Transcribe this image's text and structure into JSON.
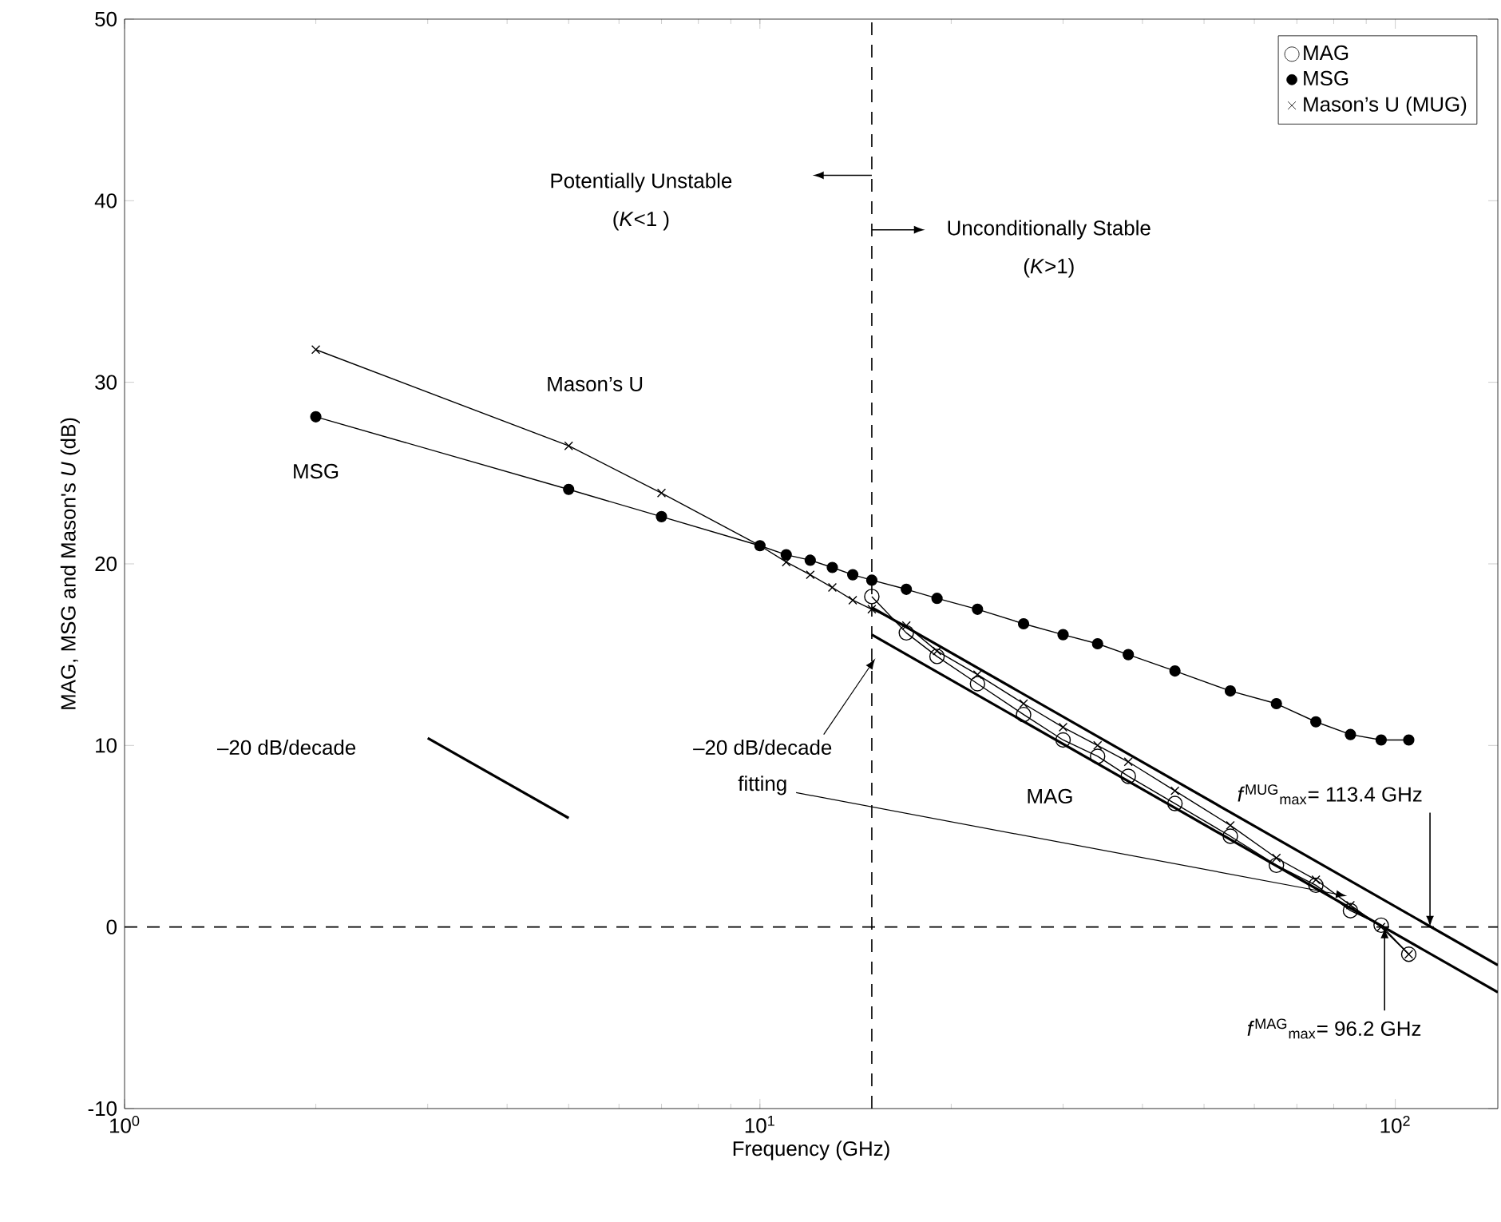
{
  "chart_data": {
    "type": "line",
    "xlabel": "Frequency (GHz)",
    "ylabel": "MAG, MSG and Mason's *U* (dB)",
    "log": "x",
    "grid": false,
    "legend": "top right",
    "xlim": [
      1,
      145
    ],
    "ylim": [
      -10,
      50
    ],
    "xticks": [
      {
        "value": 1,
        "label": "10$^{0}$"
      },
      {
        "value": 10,
        "label": "10$^{1}$"
      },
      {
        "value": 100,
        "label": "10$^{2}$"
      }
    ],
    "yticks": [
      -10,
      0,
      10,
      20,
      30,
      40,
      50
    ],
    "series": [
      {
        "name": "MAG",
        "color": "#000000",
        "marker": "circle",
        "x": [
          15,
          17,
          19,
          22,
          26,
          30,
          34,
          38,
          45,
          55,
          65,
          75,
          85,
          95,
          105
        ],
        "values": [
          18.2,
          16.2,
          14.9,
          13.4,
          11.7,
          10.3,
          9.4,
          8.3,
          6.8,
          5.0,
          3.4,
          2.3,
          0.9,
          0.1,
          -1.5
        ]
      },
      {
        "name": "MSG",
        "color": "#000000",
        "marker": "circle",
        "x": [
          2,
          5,
          7,
          10,
          11,
          12,
          13,
          14,
          15,
          17,
          19,
          22,
          26,
          30,
          34,
          38,
          45,
          55,
          65,
          75,
          85,
          95,
          105
        ],
        "values": [
          28.1,
          24.1,
          22.6,
          21.0,
          20.5,
          20.2,
          19.8,
          19.4,
          19.1,
          18.6,
          18.1,
          17.5,
          16.7,
          16.1,
          15.6,
          15.0,
          14.1,
          13.0,
          12.3,
          11.3,
          10.6,
          10.3,
          10.3
        ]
      },
      {
        "name": "Mason’s U (MUG)",
        "color": "#000000",
        "marker": "cross",
        "x": [
          2,
          5,
          7,
          10,
          11,
          12,
          13,
          14,
          15,
          17,
          19,
          22,
          26,
          30,
          34,
          38,
          45,
          55,
          65,
          75,
          85,
          95,
          105
        ],
        "values": [
          31.8,
          26.5,
          23.9,
          21.0,
          20.1,
          19.4,
          18.7,
          18.0,
          17.5,
          16.6,
          15.2,
          13.9,
          12.3,
          11.0,
          10.0,
          9.1,
          7.5,
          5.6,
          3.8,
          2.6,
          1.2,
          0.0,
          -1.5
        ]
      },
      {
        "color": "#000000",
        "marker": "none",
        "x": [
          15,
          145
        ],
        "values": [
          17.6,
          -2.1
        ]
      },
      {
        "color": "#000000",
        "marker": "none",
        "x": [
          15,
          145
        ],
        "values": [
          16.1,
          -3.6
        ]
      },
      {
        "color": "#000000",
        "marker": "none",
        "x": [
          3,
          5
        ],
        "values": [
          10.4,
          6.0
        ]
      }
    ],
    "ref_lines": [
      {
        "axis": "x",
        "value": 15,
        "line_style": "dashed",
        "color": "#000000"
      },
      {
        "axis": "y",
        "value": 0,
        "line_style": "dashed",
        "color": "#000000"
      }
    ],
    "annotations": [
      "Potentially Unstable",
      "(*K*<1 )",
      "Unconditionally Stable",
      "(*K*>1)",
      "Mason’s U",
      "MSG",
      "–20 dB/decade",
      {
        "text": "–20 dB/decade",
        "x": 15.2,
        "y": 14.8
      },
      {
        "text": "fitting",
        "x": 84,
        "y": 1.7
      },
      "MAG",
      {
        "text": "*f*$^{MUG}$$_{max}$= 113.4 GHz",
        "x": 113.4,
        "y": 0
      },
      {
        "text": "*f*$^{MAG}$$_{max}$= 96.2 GHz",
        "x": 96.2,
        "y": 0
      }
    ]
  }
}
